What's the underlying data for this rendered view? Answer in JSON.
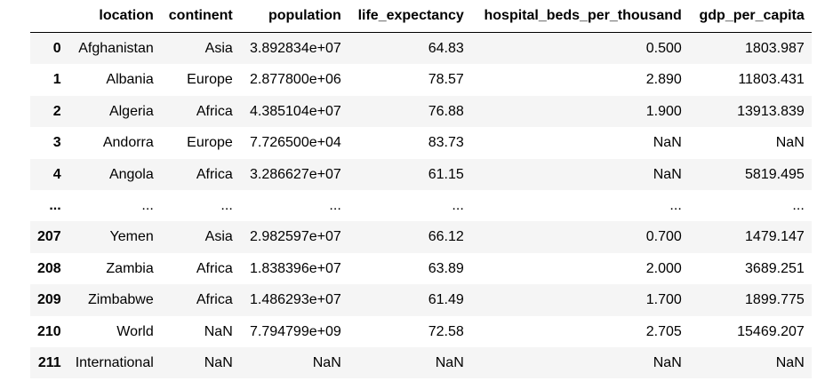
{
  "table": {
    "columns": [
      "",
      "location",
      "continent",
      "population",
      "life_expectancy",
      "hospital_beds_per_thousand",
      "gdp_per_capita"
    ],
    "rows": [
      [
        "0",
        "Afghanistan",
        "Asia",
        "3.892834e+07",
        "64.83",
        "0.500",
        "1803.987"
      ],
      [
        "1",
        "Albania",
        "Europe",
        "2.877800e+06",
        "78.57",
        "2.890",
        "11803.431"
      ],
      [
        "2",
        "Algeria",
        "Africa",
        "4.385104e+07",
        "76.88",
        "1.900",
        "13913.839"
      ],
      [
        "3",
        "Andorra",
        "Europe",
        "7.726500e+04",
        "83.73",
        "NaN",
        "NaN"
      ],
      [
        "4",
        "Angola",
        "Africa",
        "3.286627e+07",
        "61.15",
        "NaN",
        "5819.495"
      ],
      [
        "...",
        "...",
        "...",
        "...",
        "...",
        "...",
        "..."
      ],
      [
        "207",
        "Yemen",
        "Asia",
        "2.982597e+07",
        "66.12",
        "0.700",
        "1479.147"
      ],
      [
        "208",
        "Zambia",
        "Africa",
        "1.838396e+07",
        "63.89",
        "2.000",
        "3689.251"
      ],
      [
        "209",
        "Zimbabwe",
        "Africa",
        "1.486293e+07",
        "61.49",
        "1.700",
        "1899.775"
      ],
      [
        "210",
        "World",
        "NaN",
        "7.794799e+09",
        "72.58",
        "2.705",
        "15469.207"
      ],
      [
        "211",
        "International",
        "NaN",
        "NaN",
        "NaN",
        "NaN",
        "NaN"
      ]
    ]
  }
}
